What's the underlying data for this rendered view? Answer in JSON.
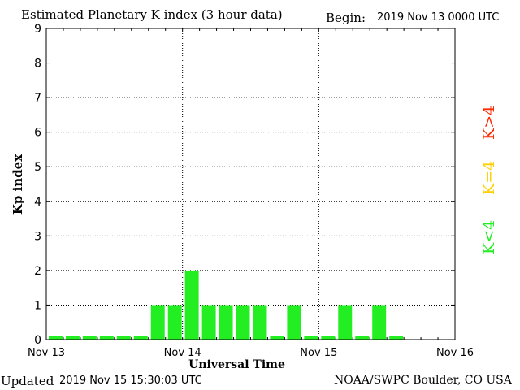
{
  "header": {
    "title": "Estimated Planetary K index (3 hour data)",
    "begin_label": "Begin:",
    "begin_value": "2019 Nov 13 0000 UTC"
  },
  "footer": {
    "updated_label": "Updated",
    "updated_value": "2019 Nov 15 15:30:03 UTC",
    "credit": "NOAA/SWPC Boulder, CO USA"
  },
  "legend": [
    {
      "label": "K>4",
      "color": "#ff2a00"
    },
    {
      "label": "K=4",
      "color": "#ffd000"
    },
    {
      "label": "K<4",
      "color": "#22ee22"
    }
  ],
  "chart_data": {
    "type": "bar",
    "title": "Estimated Planetary K index (3 hour data)",
    "xlabel": "Universal Time",
    "ylabel": "Kp index",
    "x_ticks": [
      "Nov 13",
      "Nov 14",
      "Nov 15",
      "Nov 16"
    ],
    "ylim": [
      0,
      9
    ],
    "y_ticks": [
      0,
      1,
      2,
      3,
      4,
      5,
      6,
      7,
      8,
      9
    ],
    "grid": true,
    "bin_hours": 3,
    "bar_color": "#22ee22",
    "values": [
      0,
      0,
      0,
      0,
      0,
      0,
      1,
      1,
      2,
      1,
      1,
      1,
      1,
      0,
      1,
      0,
      0,
      1,
      0,
      1,
      0
    ]
  }
}
